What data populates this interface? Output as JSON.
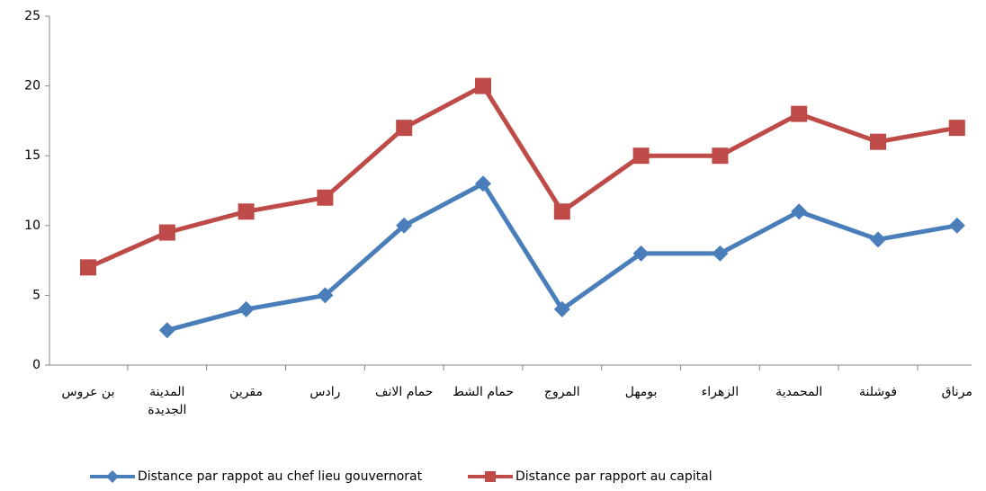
{
  "chart_data": {
    "type": "line",
    "categories": [
      "بن عروس",
      "المدينة الجديدة",
      "مقرين",
      "رادس",
      "حمام الانف",
      "حمام الشط",
      "المروج",
      "بومهل",
      "الزهراء",
      "المحمدية",
      "فوشلنة",
      "مرناق"
    ],
    "series": [
      {
        "name": "Distance par rappot au chef lieu gouvernorat",
        "color": "#4a7ebb",
        "marker": "diamond",
        "values": [
          null,
          2.5,
          4,
          5,
          10,
          13,
          4,
          8,
          8,
          11,
          9,
          10
        ]
      },
      {
        "name": "Distance par rapport au capital",
        "color": "#be4b48",
        "marker": "square",
        "values": [
          7,
          9.5,
          11,
          12,
          17,
          20,
          11,
          15,
          15,
          18,
          16,
          17
        ]
      }
    ],
    "ylim": [
      0,
      25
    ],
    "yticks": [
      0,
      5,
      10,
      15,
      20,
      25
    ],
    "grid": false,
    "legend": "bottom"
  }
}
